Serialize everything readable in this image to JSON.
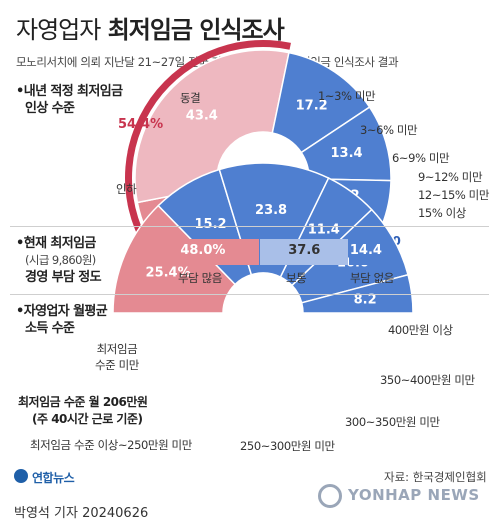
{
  "header": {
    "title_light": "자영업자",
    "title_bold": "최저임금 인식조사",
    "subtitle": "모노리서치에 의뢰 지난달 21~27일 전국 자영업자 500명 최저임금 인식조사 결과"
  },
  "section1": {
    "heading": [
      "•내년 적정 최저임금",
      "인상 수준"
    ],
    "labels": {
      "freeze": "동결",
      "cut": "인하",
      "r1_3": "1~3% 미만",
      "r3_6": "3~6% 미만",
      "r6_9": "6~9% 미만",
      "r9_12": "9~12% 미만",
      "r12_15": "12~15% 미만",
      "r15": "15% 이상"
    },
    "total_label": "54.4%"
  },
  "section2": {
    "heading": [
      "•현재 최저임금",
      "(시급 9,860원)",
      "경영 부담 정도"
    ],
    "labels": {
      "heavy": "부담 많음",
      "normal": "보통",
      "none": "부담 없음"
    }
  },
  "section3": {
    "heading": [
      "•자영업자 월평균",
      "소득 수준"
    ],
    "labels": {
      "below_min": [
        "최저임금",
        "수준 미만"
      ],
      "r250": "최저임금 수준 이상~250만원 미만",
      "r250_300": "250~300만원 미만",
      "r300_350": "300~350만원 미만",
      "r350_400": "350~400만원 미만",
      "r400": "400만원 이상"
    },
    "annotation": [
      "최저임금 수준 월 206만원",
      "(주 40시간 근로 기준)"
    ]
  },
  "footer": {
    "logo": "연합뉴스",
    "source": "자료: 한국경제인협회",
    "byline": "박영석 기자",
    "date": "20240626",
    "watermark": "YONHAP NEWS"
  },
  "colors": {
    "pink_light": "#eeb8c0",
    "pink_mid": "#e48a92",
    "pink_dark": "#c8344e",
    "blue": "#4f7fd0",
    "blue_light": "#a9bfe8",
    "blue_dark": "#2f5fb5"
  },
  "chart_data": [
    {
      "type": "pie",
      "subtype": "half-donut",
      "title": "내년 적정 최저임금 인상 수준",
      "slices": [
        {
          "label": "인하",
          "value": 11.0
        },
        {
          "label": "동결",
          "value": 43.4
        },
        {
          "label": "1~3% 미만",
          "value": 17.2
        },
        {
          "label": "3~6% 미만",
          "value": 13.4
        },
        {
          "label": "6~9% 미만",
          "value": 8.2
        },
        {
          "label": "9~12% 미만",
          "value": 3.0
        },
        {
          "label": "12~15% 미만",
          "value": 1.2
        },
        {
          "label": "15% 이상",
          "value": 2.4
        }
      ],
      "annotations": [
        "54.4%"
      ]
    },
    {
      "type": "bar",
      "subtype": "100%-stacked-horizontal",
      "title": "현재 최저임금 (시급 9,860원) 경영 부담 정도",
      "categories": [
        "부담 많음",
        "보통",
        "부담 없음"
      ],
      "values": [
        48.0,
        37.6,
        14.4
      ]
    },
    {
      "type": "pie",
      "subtype": "half-donut",
      "title": "자영업자 월평균 소득 수준",
      "slices": [
        {
          "label": "최저임금 수준 미만",
          "value": 25.4
        },
        {
          "label": "최저임금 수준 이상~250만원 미만",
          "value": 15.2
        },
        {
          "label": "250~300만원 미만",
          "value": 23.8
        },
        {
          "label": "300~350만원 미만",
          "value": 11.4
        },
        {
          "label": "350~400만원 미만",
          "value": 16.0
        },
        {
          "label": "400만원 이상",
          "value": 8.2
        }
      ]
    }
  ]
}
